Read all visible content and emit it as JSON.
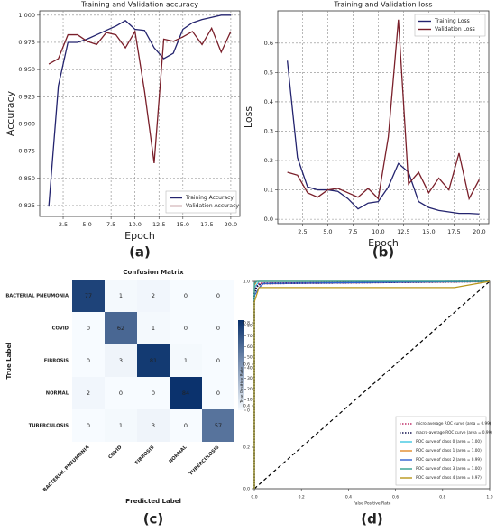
{
  "chart_data": [
    {
      "type": "line",
      "title": "Training and Validation accuracy",
      "panel_label": "(a)",
      "x_label": "Epoch",
      "y_label": "Accuracy",
      "x": [
        1,
        2,
        3,
        4,
        5,
        6,
        7,
        8,
        9,
        10,
        11,
        12,
        13,
        14,
        15,
        16,
        17,
        18,
        19,
        20
      ],
      "series": [
        {
          "name": "Training Accuracy",
          "color": "#23236e",
          "values": [
            0.824,
            0.935,
            0.975,
            0.975,
            0.978,
            0.982,
            0.986,
            0.99,
            0.995,
            0.987,
            0.986,
            0.97,
            0.96,
            0.965,
            0.987,
            0.993,
            0.996,
            0.998,
            1.0,
            1.0
          ]
        },
        {
          "name": "Validation Accuracy",
          "color": "#7a1f2a",
          "values": [
            0.955,
            0.96,
            0.982,
            0.982,
            0.976,
            0.973,
            0.984,
            0.982,
            0.97,
            0.985,
            0.93,
            0.864,
            0.978,
            0.976,
            0.98,
            0.985,
            0.973,
            0.988,
            0.966,
            0.985
          ]
        }
      ],
      "xlim": [
        0.05,
        20.95
      ],
      "xticks": [
        2.5,
        {
          "value": 5,
          "label": "5.0"
        },
        7.5,
        {
          "value": 10,
          "label": "10.0"
        },
        12.5,
        {
          "value": 15,
          "label": "15.0"
        },
        17.5,
        {
          "value": 20,
          "label": "20.0"
        }
      ],
      "ylim": [
        0.815,
        1.004
      ],
      "yticks": [
        0.825,
        {
          "value": 0.85,
          "label": "0.850"
        },
        0.875,
        {
          "value": 0.9,
          "label": "0.900"
        },
        0.925,
        {
          "value": 0.95,
          "label": "0.950"
        },
        0.975,
        {
          "value": 1,
          "label": "1.000"
        }
      ],
      "grid": true,
      "legend": "lower right"
    },
    {
      "type": "line",
      "title": "Training and Validation loss",
      "panel_label": "(b)",
      "x_label": "Epoch",
      "y_label": "Loss",
      "x": [
        1,
        2,
        3,
        4,
        5,
        6,
        7,
        8,
        9,
        10,
        11,
        12,
        13,
        14,
        15,
        16,
        17,
        18,
        19,
        20
      ],
      "series": [
        {
          "name": "Training Loss",
          "color": "#23236e",
          "values": [
            0.54,
            0.21,
            0.11,
            0.1,
            0.1,
            0.095,
            0.07,
            0.035,
            0.055,
            0.06,
            0.11,
            0.19,
            0.16,
            0.06,
            0.04,
            0.03,
            0.025,
            0.02,
            0.02,
            0.018
          ]
        },
        {
          "name": "Validation Loss",
          "color": "#7a1f2a",
          "values": [
            0.16,
            0.15,
            0.09,
            0.075,
            0.1,
            0.105,
            0.09,
            0.075,
            0.105,
            0.07,
            0.28,
            0.68,
            0.12,
            0.16,
            0.09,
            0.14,
            0.1,
            0.225,
            0.07,
            0.135
          ]
        }
      ],
      "xlim": [
        0.05,
        20.95
      ],
      "xticks": [
        2.5,
        {
          "value": 5,
          "label": "5.0"
        },
        7.5,
        {
          "value": 10,
          "label": "10.0"
        },
        12.5,
        {
          "value": 15,
          "label": "15.0"
        },
        17.5,
        {
          "value": 20,
          "label": "20.0"
        }
      ],
      "ylim": [
        -0.015,
        0.71
      ],
      "yticks": [
        {
          "value": 0,
          "label": "0.0"
        },
        0.1,
        0.2,
        0.3,
        0.4,
        0.5,
        0.6
      ],
      "grid": true,
      "legend": "upper right"
    },
    {
      "type": "heatmap",
      "title": "Confusion Matrix",
      "panel_label": "(c)",
      "x_label": "Predicted Label",
      "y_label": "True Label",
      "categories": [
        "BACTERIAL PNEUMONIA",
        "COVID",
        "FIBROSIS",
        "NORMAL",
        "TUBERCULOSIS"
      ],
      "matrix": [
        [
          77,
          1,
          2,
          0,
          0
        ],
        [
          0,
          62,
          1,
          0,
          0
        ],
        [
          0,
          3,
          81,
          1,
          0
        ],
        [
          2,
          0,
          0,
          84,
          0
        ],
        [
          0,
          1,
          3,
          0,
          57
        ]
      ],
      "zlim": [
        0,
        85
      ],
      "zticks": [
        0,
        10,
        20,
        30,
        40,
        50,
        60,
        70,
        80
      ],
      "colors": [
        "#f7fbff",
        "#08306b"
      ]
    },
    {
      "type": "roc",
      "panel_label": "(d)",
      "x_label": "False Positive Rate",
      "y_label": "True Positive Rate",
      "series": [
        {
          "name": "micro-average ROC curve (area = 0.99)",
          "color": "#c0306a",
          "style": "dotted",
          "x": [
            0,
            0,
            0.01,
            0.02,
            1
          ],
          "y": [
            0,
            0.95,
            0.98,
            0.99,
            1
          ]
        },
        {
          "name": "macro-average ROC curve (area = 0.99)",
          "color": "#141450",
          "style": "dotted",
          "x": [
            0,
            0,
            0.01,
            0.03,
            1
          ],
          "y": [
            0,
            0.94,
            0.975,
            0.99,
            1
          ]
        },
        {
          "name": "ROC curve of class 0 (area = 1.00)",
          "color": "#40c8e0",
          "style": "solid",
          "x": [
            0,
            0,
            0.02,
            1
          ],
          "y": [
            0,
            0.97,
            1,
            1
          ]
        },
        {
          "name": "ROC curve of class 1 (area = 1.00)",
          "color": "#e08a2a",
          "style": "solid",
          "x": [
            0,
            0,
            0.01,
            1
          ],
          "y": [
            0,
            0.98,
            1,
            1
          ]
        },
        {
          "name": "ROC curve of class 2 (area = 0.99)",
          "color": "#3060d0",
          "style": "solid",
          "x": [
            0,
            0,
            0.02,
            0.04,
            1
          ],
          "y": [
            0,
            0.93,
            0.97,
            0.99,
            1
          ]
        },
        {
          "name": "ROC curve of class 3 (area = 1.00)",
          "color": "#30a090",
          "style": "solid",
          "x": [
            0,
            0,
            0.01,
            1
          ],
          "y": [
            0,
            0.99,
            1,
            1
          ]
        },
        {
          "name": "ROC curve of class 4 (area = 0.97)",
          "color": "#b8961a",
          "style": "solid",
          "x": [
            0,
            0,
            0.02,
            0.85,
            1
          ],
          "y": [
            0,
            0.9,
            0.97,
            0.97,
            1
          ]
        }
      ],
      "xlim": [
        0,
        1
      ],
      "xticks": [
        {
          "value": 0,
          "label": "0.0"
        },
        0.2,
        0.4,
        0.6,
        0.8,
        {
          "value": 1,
          "label": "1.0"
        }
      ],
      "ylim": [
        0,
        1
      ],
      "yticks": [
        {
          "value": 0,
          "label": "0.0"
        },
        0.2,
        0.4,
        0.6,
        0.8,
        {
          "value": 1,
          "label": "1.0"
        }
      ],
      "grid": false,
      "legend": "lower right"
    }
  ]
}
